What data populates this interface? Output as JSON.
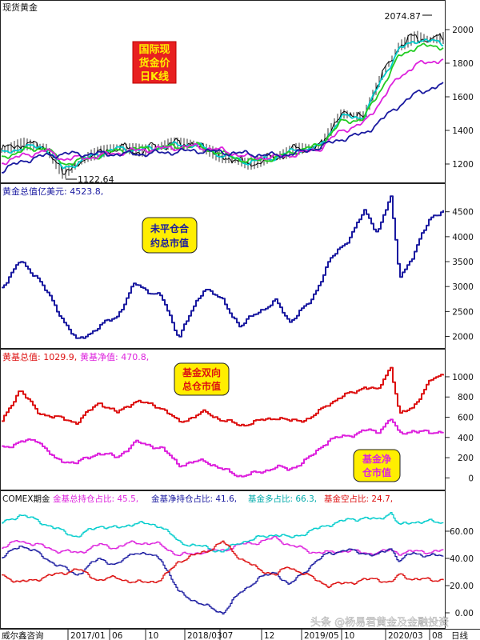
{
  "panel1": {
    "title": "现货黄金",
    "callout_lines": [
      "国际现",
      "货金价",
      "日K线"
    ],
    "high_label": "2074.87",
    "low_label": "1122.64"
  },
  "panel2": {
    "legend": "黄金总值亿美元: 4523.8,",
    "callout_lines": [
      "未平仓合",
      "约总市值"
    ]
  },
  "panel3": {
    "legend_parts": [
      "黄基总值: 1029.9,",
      "黄基净值: 470.8,"
    ],
    "callout_a_lines": [
      "基金双向",
      "总仓市值"
    ],
    "callout_b_lines": [
      "基金净",
      "仓市值"
    ]
  },
  "panel4": {
    "legend_parts": [
      "COMEX期金",
      "金基总持仓占比: 45.5,",
      "金基净持仓占比: 41.6,",
      "基金多占比: 66.3,",
      "基金空占比: 24.7,"
    ]
  },
  "bottom_axis": {
    "left_label": "威尔鑫咨询",
    "date_labels": [
      "2017/01",
      "06",
      "10",
      "2018/03",
      "07",
      "12",
      "2019/05",
      "10",
      "2020/03",
      "08"
    ],
    "right_label": "日线"
  },
  "watermark": "头条 @杨易君黄金及金融投资",
  "colors": {
    "price": "#000000",
    "ma_cyan": "#00cccc",
    "ma_green": "#22cc22",
    "ma_magenta": "#dd22dd",
    "ma_blue": "#1a1aa0",
    "red": "#dd1111",
    "callout_red_bg": "#e82020",
    "callout_yellow_bg": "#ffee00"
  },
  "chart_data": [
    {
      "type": "line",
      "title": "现货黄金",
      "ylim": [
        1100,
        2100
      ],
      "yticks": [
        1200,
        1400,
        1600,
        1800,
        2000
      ],
      "x": [
        0,
        0.05,
        0.1,
        0.14,
        0.2,
        0.26,
        0.32,
        0.38,
        0.44,
        0.5,
        0.56,
        0.62,
        0.67,
        0.72,
        0.77,
        0.82,
        0.86,
        0.9,
        0.94,
        0.97,
        1.0
      ],
      "series": [
        {
          "name": "price",
          "values": [
            1280,
            1320,
            1300,
            1140,
            1250,
            1300,
            1280,
            1320,
            1320,
            1240,
            1200,
            1240,
            1290,
            1300,
            1500,
            1480,
            1720,
            1900,
            1960,
            1940,
            1950
          ]
        },
        {
          "name": "ma1",
          "values": [
            1260,
            1300,
            1300,
            1170,
            1240,
            1290,
            1285,
            1310,
            1315,
            1250,
            1210,
            1240,
            1285,
            1300,
            1480,
            1480,
            1700,
            1880,
            1940,
            1930,
            1920
          ]
        },
        {
          "name": "ma2",
          "values": [
            1240,
            1280,
            1300,
            1200,
            1235,
            1280,
            1290,
            1300,
            1310,
            1260,
            1215,
            1235,
            1280,
            1310,
            1450,
            1470,
            1650,
            1840,
            1900,
            1900,
            1900
          ]
        },
        {
          "name": "ma3",
          "values": [
            1210,
            1250,
            1280,
            1230,
            1240,
            1265,
            1285,
            1295,
            1305,
            1280,
            1240,
            1240,
            1260,
            1290,
            1400,
            1440,
            1580,
            1720,
            1790,
            1810,
            1820
          ]
        },
        {
          "name": "ma4",
          "values": [
            1160,
            1220,
            1250,
            1260,
            1260,
            1260,
            1260,
            1270,
            1280,
            1270,
            1260,
            1250,
            1265,
            1300,
            1350,
            1380,
            1460,
            1550,
            1620,
            1650,
            1670
          ]
        }
      ],
      "annotations": [
        {
          "text": "2074.87",
          "x": 0.975,
          "y": 2074.87
        },
        {
          "text": "1122.64",
          "x": 0.14,
          "y": 1122.64
        }
      ]
    },
    {
      "type": "line",
      "ylim": [
        1800,
        4800
      ],
      "yticks": [
        2000,
        2500,
        3000,
        3500,
        4000,
        4500
      ],
      "x": [
        0,
        0.04,
        0.08,
        0.12,
        0.17,
        0.22,
        0.26,
        0.3,
        0.36,
        0.4,
        0.46,
        0.5,
        0.54,
        0.58,
        0.62,
        0.65,
        0.7,
        0.74,
        0.78,
        0.82,
        0.85,
        0.88,
        0.9,
        0.93,
        0.97,
        1.0
      ],
      "series": [
        {
          "name": "黄金总值亿美元",
          "values": [
            3000,
            3500,
            3200,
            2600,
            1900,
            2200,
            2400,
            3050,
            2800,
            2000,
            3000,
            2700,
            2200,
            2500,
            2700,
            2300,
            2700,
            3500,
            3900,
            4500,
            4100,
            4800,
            3200,
            3600,
            4400,
            4520
          ]
        }
      ]
    },
    {
      "type": "line",
      "ylim": [
        -100,
        1150
      ],
      "yticks": [
        0,
        200,
        400,
        600,
        800,
        1000
      ],
      "x": [
        0,
        0.04,
        0.08,
        0.12,
        0.17,
        0.22,
        0.26,
        0.3,
        0.36,
        0.4,
        0.46,
        0.5,
        0.54,
        0.58,
        0.62,
        0.65,
        0.7,
        0.74,
        0.78,
        0.82,
        0.85,
        0.88,
        0.9,
        0.93,
        0.97,
        1.0
      ],
      "series": [
        {
          "name": "黄基总值",
          "values": [
            550,
            880,
            650,
            600,
            550,
            750,
            640,
            760,
            700,
            550,
            650,
            570,
            520,
            560,
            600,
            560,
            590,
            740,
            820,
            900,
            860,
            1110,
            620,
            700,
            960,
            1030
          ]
        },
        {
          "name": "黄基净值",
          "values": [
            300,
            350,
            380,
            180,
            150,
            250,
            200,
            350,
            300,
            130,
            170,
            80,
            20,
            50,
            110,
            80,
            210,
            380,
            410,
            470,
            450,
            590,
            430,
            470,
            440,
            470
          ]
        }
      ]
    },
    {
      "type": "line",
      "title": "COMEX期金",
      "ylim": [
        -10,
        80
      ],
      "yticks": [
        0,
        20,
        40,
        60
      ],
      "x": [
        0,
        0.04,
        0.08,
        0.12,
        0.17,
        0.22,
        0.26,
        0.3,
        0.36,
        0.4,
        0.46,
        0.5,
        0.54,
        0.58,
        0.62,
        0.65,
        0.7,
        0.74,
        0.78,
        0.82,
        0.85,
        0.88,
        0.9,
        0.93,
        0.97,
        1.0
      ],
      "series": [
        {
          "name": "金基总持仓占比",
          "values": [
            48,
            53,
            50,
            46,
            44,
            50,
            48,
            52,
            50,
            42,
            45,
            46,
            50,
            52,
            55,
            50,
            45,
            44,
            46,
            44,
            44,
            46,
            44,
            45,
            45,
            45.5
          ]
        },
        {
          "name": "金基净持仓占比",
          "values": [
            40,
            50,
            44,
            36,
            28,
            40,
            35,
            45,
            40,
            15,
            5,
            0,
            15,
            25,
            30,
            20,
            35,
            44,
            46,
            44,
            42,
            48,
            38,
            44,
            42,
            41.6
          ]
        },
        {
          "name": "基金多占比",
          "values": [
            66,
            72,
            68,
            62,
            56,
            64,
            62,
            66,
            64,
            52,
            48,
            45,
            52,
            55,
            58,
            55,
            60,
            65,
            68,
            70,
            68,
            74,
            64,
            67,
            67,
            66.3
          ]
        },
        {
          "name": "基金空占比",
          "values": [
            28,
            22,
            25,
            28,
            32,
            24,
            26,
            22,
            24,
            38,
            45,
            52,
            40,
            32,
            28,
            34,
            26,
            20,
            22,
            24,
            25,
            22,
            28,
            25,
            24,
            24.7
          ]
        }
      ]
    }
  ]
}
